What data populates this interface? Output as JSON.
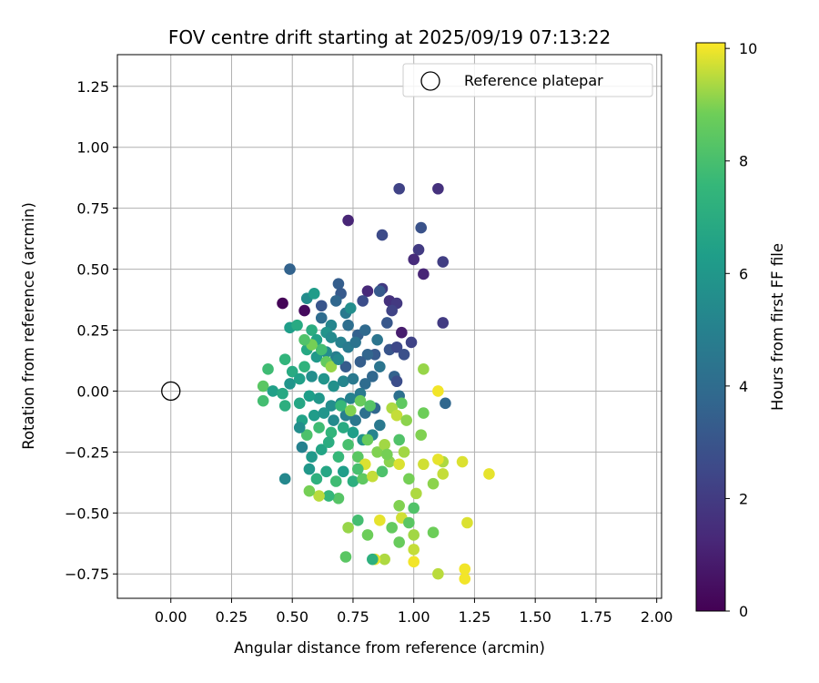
{
  "chart_data": {
    "type": "scatter",
    "title": "FOV centre drift starting at 2025/09/19 07:13:22",
    "xlabel": "Angular distance from reference (arcmin)",
    "ylabel": "Rotation from reference (arcmin)",
    "xlim": [
      -0.22,
      2.02
    ],
    "ylim": [
      -0.85,
      1.38
    ],
    "xticks": [
      "0.00",
      "0.25",
      "0.50",
      "0.75",
      "1.00",
      "1.25",
      "1.50",
      "1.75",
      "2.00"
    ],
    "yticks": [
      "−0.75",
      "−0.50",
      "−0.25",
      "0.00",
      "0.25",
      "0.50",
      "0.75",
      "1.00",
      "1.25"
    ],
    "grid": true,
    "legend": {
      "placement": "top-right",
      "entries": [
        "Reference platepar"
      ]
    },
    "reference_point": {
      "x": 0.0,
      "y": 0.0,
      "label": "Reference platepar"
    },
    "colorbar": {
      "label": "Hours from first FF file",
      "colormap": "viridis",
      "range": [
        0,
        10.1
      ],
      "ticks": [
        "0",
        "2",
        "4",
        "6",
        "8",
        "10"
      ]
    },
    "series": [
      {
        "c_label": "Hours from first FF file",
        "points": [
          [
            0.94,
            0.83,
            2.3
          ],
          [
            1.1,
            0.83,
            1.6
          ],
          [
            0.73,
            0.7,
            1.2
          ],
          [
            0.87,
            0.64,
            2.6
          ],
          [
            1.03,
            0.67,
            2.9
          ],
          [
            1.02,
            0.58,
            2.0
          ],
          [
            1.0,
            0.54,
            1.4
          ],
          [
            1.12,
            0.53,
            2.1
          ],
          [
            1.04,
            0.48,
            1.2
          ],
          [
            0.49,
            0.5,
            3.6
          ],
          [
            1.12,
            0.28,
            2.0
          ],
          [
            0.46,
            0.36,
            0.1
          ],
          [
            0.55,
            0.33,
            0.3
          ],
          [
            0.81,
            0.41,
            1.3
          ],
          [
            0.86,
            0.41,
            1.8
          ],
          [
            0.87,
            0.42,
            2.0
          ],
          [
            0.9,
            0.37,
            1.6
          ],
          [
            0.93,
            0.36,
            1.9
          ],
          [
            0.91,
            0.33,
            2.3
          ],
          [
            0.69,
            0.44,
            3.4
          ],
          [
            0.7,
            0.4,
            3.2
          ],
          [
            0.68,
            0.37,
            3.8
          ],
          [
            0.62,
            0.35,
            3.0
          ],
          [
            0.56,
            0.38,
            5.5
          ],
          [
            0.59,
            0.4,
            6.2
          ],
          [
            0.79,
            0.37,
            2.7
          ],
          [
            0.86,
            0.41,
            3.2
          ],
          [
            0.89,
            0.28,
            3.1
          ],
          [
            0.95,
            0.24,
            0.9
          ],
          [
            0.99,
            0.2,
            2.3
          ],
          [
            0.62,
            0.3,
            4.0
          ],
          [
            0.66,
            0.27,
            5.2
          ],
          [
            0.72,
            0.32,
            4.6
          ],
          [
            0.74,
            0.34,
            5.6
          ],
          [
            0.73,
            0.27,
            4.1
          ],
          [
            0.77,
            0.23,
            3.5
          ],
          [
            0.8,
            0.25,
            3.9
          ],
          [
            0.85,
            0.21,
            4.4
          ],
          [
            0.84,
            0.15,
            3.2
          ],
          [
            0.9,
            0.17,
            3.0
          ],
          [
            0.93,
            0.18,
            2.5
          ],
          [
            0.96,
            0.15,
            2.8
          ],
          [
            0.83,
            0.06,
            3.8
          ],
          [
            0.86,
            0.1,
            4.4
          ],
          [
            0.92,
            0.06,
            3.6
          ],
          [
            0.93,
            0.04,
            2.7
          ],
          [
            0.94,
            -0.02,
            4.2
          ],
          [
            1.13,
            -0.05,
            3.8
          ],
          [
            0.49,
            0.26,
            6.3
          ],
          [
            0.52,
            0.27,
            6.9
          ],
          [
            0.58,
            0.25,
            7.0
          ],
          [
            0.6,
            0.21,
            6.5
          ],
          [
            0.64,
            0.24,
            5.8
          ],
          [
            0.66,
            0.22,
            5.4
          ],
          [
            0.7,
            0.2,
            5.0
          ],
          [
            0.73,
            0.18,
            4.7
          ],
          [
            0.76,
            0.2,
            4.3
          ],
          [
            0.81,
            0.15,
            3.7
          ],
          [
            0.78,
            0.12,
            3.4
          ],
          [
            0.72,
            0.1,
            3.3
          ],
          [
            0.68,
            0.14,
            4.8
          ],
          [
            0.64,
            0.16,
            5.5
          ],
          [
            0.6,
            0.14,
            6.1
          ],
          [
            0.56,
            0.17,
            6.8
          ],
          [
            0.55,
            0.1,
            7.3
          ],
          [
            0.5,
            0.08,
            6.9
          ],
          [
            0.47,
            0.13,
            7.4
          ],
          [
            0.4,
            0.09,
            7.8
          ],
          [
            0.38,
            0.02,
            8.4
          ],
          [
            0.38,
            -0.04,
            7.9
          ],
          [
            0.42,
            0.0,
            6.4
          ],
          [
            0.46,
            -0.01,
            6.8
          ],
          [
            0.49,
            0.03,
            5.9
          ],
          [
            0.53,
            0.05,
            6.4
          ],
          [
            0.58,
            0.06,
            5.6
          ],
          [
            0.63,
            0.05,
            5.9
          ],
          [
            0.67,
            0.02,
            5.7
          ],
          [
            0.71,
            0.04,
            5.2
          ],
          [
            0.75,
            0.05,
            4.6
          ],
          [
            0.8,
            0.03,
            4.0
          ],
          [
            0.78,
            -0.01,
            4.6
          ],
          [
            0.74,
            -0.03,
            5.0
          ],
          [
            0.7,
            -0.05,
            5.3
          ],
          [
            0.66,
            -0.06,
            5.6
          ],
          [
            0.61,
            -0.03,
            6.0
          ],
          [
            0.57,
            -0.02,
            6.3
          ],
          [
            0.53,
            -0.05,
            6.7
          ],
          [
            0.47,
            -0.06,
            7.1
          ],
          [
            0.54,
            -0.12,
            6.5
          ],
          [
            0.59,
            -0.1,
            6.2
          ],
          [
            0.63,
            -0.09,
            5.9
          ],
          [
            0.67,
            -0.12,
            5.4
          ],
          [
            0.72,
            -0.1,
            4.9
          ],
          [
            0.76,
            -0.12,
            4.5
          ],
          [
            0.8,
            -0.09,
            4.2
          ],
          [
            0.84,
            -0.07,
            3.8
          ],
          [
            0.86,
            -0.14,
            4.6
          ],
          [
            0.83,
            -0.18,
            5.1
          ],
          [
            0.79,
            -0.2,
            5.8
          ],
          [
            0.75,
            -0.17,
            6.3
          ],
          [
            0.71,
            -0.15,
            6.9
          ],
          [
            0.66,
            -0.17,
            7.4
          ],
          [
            0.61,
            -0.15,
            7.8
          ],
          [
            0.56,
            -0.18,
            8.1
          ],
          [
            0.53,
            -0.15,
            5.6
          ],
          [
            0.54,
            -0.23,
            5.0
          ],
          [
            0.58,
            -0.27,
            6.1
          ],
          [
            0.62,
            -0.24,
            6.6
          ],
          [
            0.65,
            -0.21,
            7.0
          ],
          [
            0.69,
            -0.27,
            7.6
          ],
          [
            0.73,
            -0.22,
            8.0
          ],
          [
            0.77,
            -0.27,
            8.4
          ],
          [
            0.81,
            -0.2,
            8.7
          ],
          [
            0.85,
            -0.25,
            9.0
          ],
          [
            0.88,
            -0.22,
            9.3
          ],
          [
            0.57,
            -0.32,
            6.0
          ],
          [
            0.6,
            -0.36,
            7.2
          ],
          [
            0.64,
            -0.33,
            6.7
          ],
          [
            0.68,
            -0.37,
            7.8
          ],
          [
            0.71,
            -0.33,
            6.3
          ],
          [
            0.75,
            -0.37,
            7.1
          ],
          [
            0.79,
            -0.36,
            8.5
          ],
          [
            0.83,
            -0.35,
            9.6
          ],
          [
            0.87,
            -0.33,
            8.1
          ],
          [
            0.9,
            -0.29,
            9.1
          ],
          [
            0.94,
            -0.3,
            9.8
          ],
          [
            0.98,
            -0.36,
            8.9
          ],
          [
            1.01,
            -0.42,
            9.4
          ],
          [
            1.0,
            -0.48,
            8.2
          ],
          [
            0.95,
            -0.52,
            9.7
          ],
          [
            0.91,
            -0.56,
            8.6
          ],
          [
            0.86,
            -0.53,
            9.9
          ],
          [
            0.81,
            -0.59,
            8.8
          ],
          [
            0.77,
            -0.53,
            7.9
          ],
          [
            0.73,
            -0.56,
            9.2
          ],
          [
            0.69,
            -0.44,
            8.3
          ],
          [
            0.65,
            -0.43,
            7.5
          ],
          [
            0.61,
            -0.43,
            9.5
          ],
          [
            0.57,
            -0.41,
            8.9
          ],
          [
            0.47,
            -0.36,
            5.3
          ],
          [
            0.94,
            -0.47,
            9.0
          ],
          [
            0.98,
            -0.54,
            8.4
          ],
          [
            1.0,
            -0.59,
            9.3
          ],
          [
            1.0,
            -0.65,
            9.6
          ],
          [
            1.0,
            -0.7,
            10.0
          ],
          [
            0.94,
            -0.62,
            8.7
          ],
          [
            0.88,
            -0.69,
            9.4
          ],
          [
            0.84,
            -0.69,
            9.9
          ],
          [
            0.83,
            -0.69,
            7.2
          ],
          [
            0.72,
            -0.68,
            8.4
          ],
          [
            1.08,
            -0.58,
            8.8
          ],
          [
            1.1,
            -0.75,
            9.5
          ],
          [
            1.21,
            -0.73,
            10.0
          ],
          [
            1.21,
            -0.77,
            10.0
          ],
          [
            1.22,
            -0.54,
            9.8
          ],
          [
            1.31,
            -0.34,
            9.9
          ],
          [
            1.2,
            -0.29,
            9.8
          ],
          [
            1.12,
            -0.34,
            9.6
          ],
          [
            1.08,
            -0.38,
            9.1
          ],
          [
            1.12,
            -0.29,
            9.4
          ],
          [
            1.1,
            -0.28,
            9.9
          ],
          [
            1.04,
            -0.3,
            9.7
          ],
          [
            1.03,
            -0.18,
            9.0
          ],
          [
            1.04,
            -0.09,
            8.8
          ],
          [
            1.1,
            0.0,
            10.0
          ],
          [
            1.04,
            0.09,
            9.2
          ],
          [
            0.95,
            -0.05,
            8.5
          ],
          [
            0.91,
            -0.07,
            9.4
          ],
          [
            0.93,
            -0.1,
            9.6
          ],
          [
            0.97,
            -0.12,
            9.1
          ],
          [
            0.96,
            -0.25,
            9.3
          ],
          [
            0.94,
            -0.2,
            8.2
          ],
          [
            0.89,
            -0.26,
            8.9
          ],
          [
            0.8,
            -0.3,
            9.8
          ],
          [
            0.77,
            -0.32,
            8.0
          ],
          [
            0.7,
            -0.06,
            7.6
          ],
          [
            0.74,
            -0.08,
            9.0
          ],
          [
            0.78,
            -0.04,
            8.7
          ],
          [
            0.82,
            -0.06,
            8.3
          ],
          [
            0.64,
            0.12,
            8.6
          ],
          [
            0.62,
            0.17,
            7.9
          ],
          [
            0.58,
            0.19,
            8.9
          ],
          [
            0.55,
            0.21,
            8.2
          ],
          [
            0.66,
            0.1,
            9.2
          ],
          [
            0.69,
            0.13,
            5.3
          ]
        ]
      }
    ]
  }
}
